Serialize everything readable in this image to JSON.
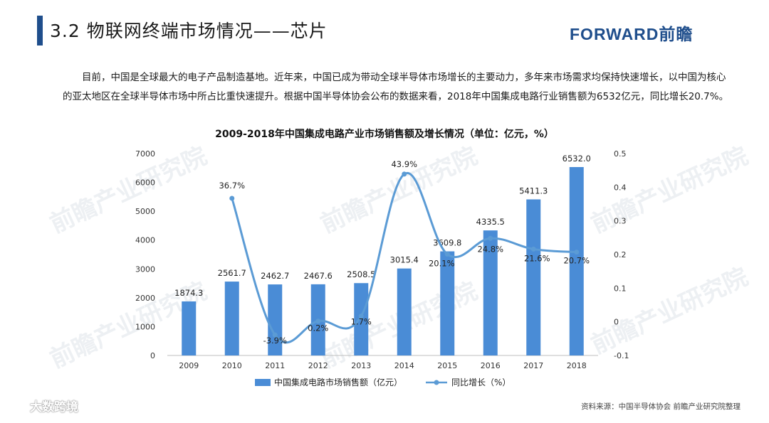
{
  "header": {
    "title": "3.2  物联网终端市场情况——芯片",
    "brand": "FORWARD前瞻"
  },
  "intro": "目前，中国是全球最大的电子产品制造基地。近年来，中国已成为带动全球半导体市场增长的主要动力，多年来市场需求均保持快速增长，以中国为核心的亚太地区在全球半导体市场中所占比重快速提升。根据中国半导体协会公布的数据来看，2018年中国集成电路行业销售额为6532亿元，同比增长20.7%。",
  "source": "资料来源：中国半导体协会  前瞻产业研究院整理",
  "watermarks": {
    "corner": "大数跨境",
    "page": "前瞻产业研究院"
  },
  "colors": {
    "bar": "#4a8cd6",
    "line": "#5b9bd5",
    "title_bar": "#1f4e8c",
    "brand": "#1f4e8c"
  },
  "chart_data": {
    "type": "bar",
    "title": "2009-2018年中国集成电路产业市场销售额及增长情况（单位：亿元，%）",
    "categories": [
      "2009",
      "2010",
      "2011",
      "2012",
      "2013",
      "2014",
      "2015",
      "2016",
      "2017",
      "2018"
    ],
    "series": [
      {
        "name": "中国集成电路市场销售额（亿元）",
        "type": "bar",
        "axis": "left",
        "values": [
          1874.3,
          2561.7,
          2462.7,
          2467.6,
          2508.5,
          3015.4,
          3609.8,
          4335.5,
          5411.3,
          6532.0
        ],
        "labels": [
          "1874.3",
          "2561.7",
          "2462.7",
          "2467.6",
          "2508.5",
          "3015.4",
          "3609.8",
          "4335.5",
          "5411.3",
          "6532.0"
        ]
      },
      {
        "name": "同比增长（%）",
        "type": "line",
        "axis": "right",
        "values": [
          null,
          0.367,
          -0.039,
          0.002,
          0.017,
          0.439,
          0.201,
          0.248,
          0.216,
          0.207
        ],
        "labels": [
          "",
          "36.7%",
          "-3.9%",
          "0.2%",
          "1.7%",
          "43.9%",
          "20.1%",
          "24.8%",
          "21.6%",
          "20.7%"
        ]
      }
    ],
    "left_axis": {
      "ylim": [
        0,
        7000
      ],
      "ticks": [
        "0",
        "1000",
        "2000",
        "3000",
        "4000",
        "5000",
        "6000",
        "7000"
      ]
    },
    "right_axis": {
      "ylim": [
        -0.1,
        0.5
      ],
      "ticks": [
        "-0.1",
        "0",
        "0.1",
        "0.2",
        "0.3",
        "0.4",
        "0.5"
      ]
    },
    "legend": {
      "position": "bottom",
      "bar_label": "中国集成电路市场销售额（亿元）",
      "line_label": "同比增长（%）"
    }
  }
}
